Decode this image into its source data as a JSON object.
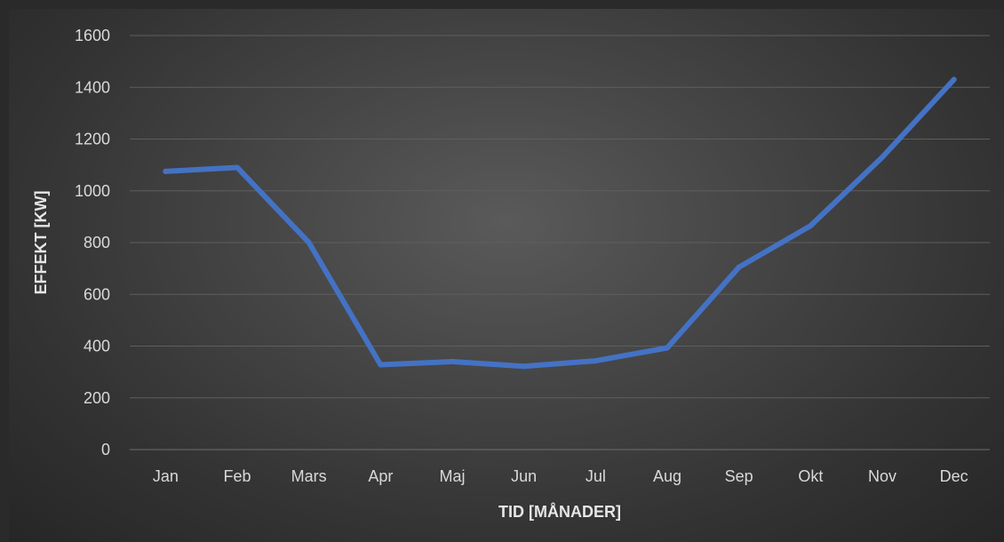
{
  "chart_data": {
    "type": "line",
    "title": "",
    "xlabel": "TID [MÅNADER]",
    "ylabel": "EFFEKT [KW]",
    "categories": [
      "Jan",
      "Feb",
      "Mars",
      "Apr",
      "Maj",
      "Jun",
      "Jul",
      "Aug",
      "Sep",
      "Okt",
      "Nov",
      "Dec"
    ],
    "series": [
      {
        "values": [
          1075,
          1090,
          800,
          328,
          340,
          322,
          343,
          393,
          705,
          865,
          1130,
          1430
        ]
      }
    ],
    "ylim": [
      0,
      1600
    ],
    "yticks": [
      0,
      200,
      400,
      600,
      800,
      1000,
      1200,
      1400,
      1600
    ],
    "grid": true,
    "legend": "none",
    "colors": {
      "line": "#4472c4",
      "grid": "#5e5e5e",
      "text": "#d9d9d9"
    }
  }
}
